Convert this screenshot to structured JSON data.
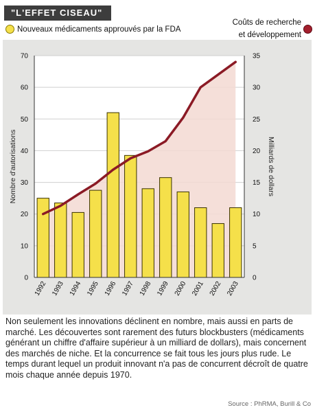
{
  "header": {
    "title": "\"L'EFFET CISEAU\"",
    "legend_left": "Nouveaux médicaments approuvés par la FDA",
    "legend_right_line1": "Coûts de recherche",
    "legend_right_line2": "et développement"
  },
  "colors": {
    "bar_fill": "#f5e04a",
    "bar_stroke": "#3a3200",
    "line": "#8b1a25",
    "area": "#f3d9d2",
    "panel": "#e5e5e3",
    "title_bg": "#3d3d3d"
  },
  "chart_data": {
    "type": "bar",
    "title": "\"L'EFFET CISEAU\"",
    "categories": [
      "1992",
      "1993",
      "1994",
      "1995",
      "1996",
      "1997",
      "1998",
      "1999",
      "2000",
      "2001",
      "2002",
      "2003"
    ],
    "series": [
      {
        "name": "Nouveaux médicaments approuvés par la FDA",
        "type": "bar",
        "axis": "left",
        "values": [
          25,
          23.5,
          20.5,
          27.5,
          52,
          38.5,
          28,
          31.5,
          27,
          22,
          17,
          22
        ]
      },
      {
        "name": "Coûts de recherche et développement",
        "type": "line",
        "axis": "right",
        "values": [
          10,
          11.3,
          13.1,
          14.8,
          17,
          18.8,
          19.9,
          21.5,
          25.2,
          30,
          32,
          34
        ]
      }
    ],
    "ylabel_left": "Nombre d'autorisations",
    "ylabel_right": "Milliards de dollars",
    "ylim_left": [
      0,
      70
    ],
    "yticks_left": [
      0,
      10,
      20,
      30,
      40,
      50,
      60,
      70
    ],
    "ylim_right": [
      0,
      35
    ],
    "yticks_right": [
      0,
      5,
      10,
      15,
      20,
      25,
      30,
      35
    ],
    "grid": true,
    "legend": "top"
  },
  "caption": "Non seulement les innovations déclinent en nombre, mais aussi en parts de marché. Les découvertes sont rarement des futurs blockbusters (médicaments générant un chiffre d'affaire supérieur à un milliard de dollars), mais concernent des marchés de niche. Et la concurrence se fait tous les jours plus rude. Le temps durant lequel un produit innovant n'a pas de concurrent décroît de quatre mois chaque année depuis 1970.",
  "source": "Source : PhRMA, Burill & Co"
}
